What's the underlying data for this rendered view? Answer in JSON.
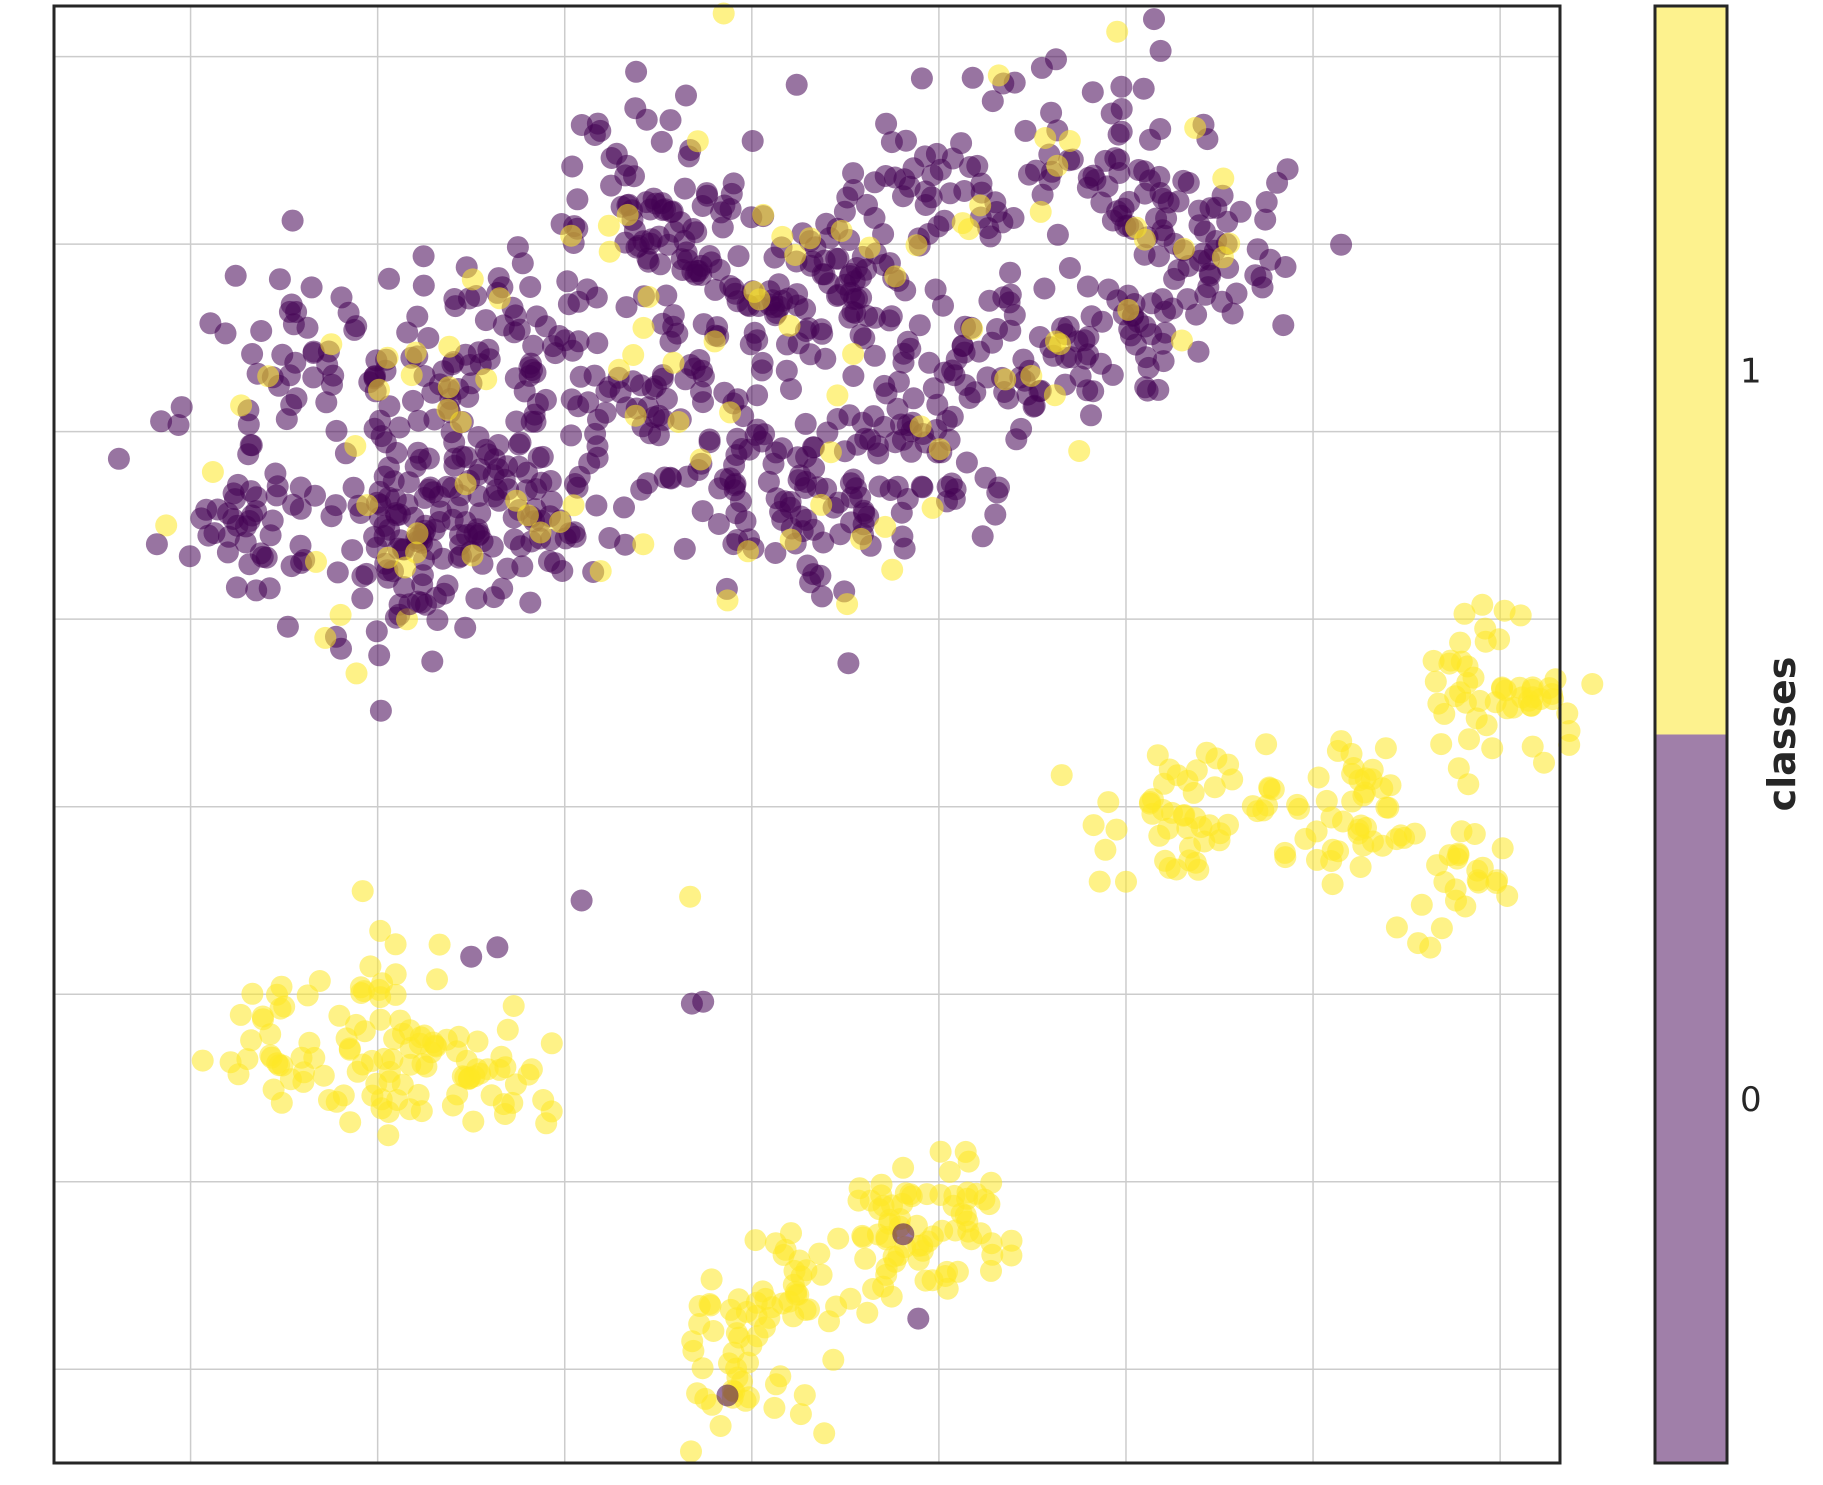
{
  "chart_data": {
    "type": "scatter",
    "title": "",
    "xlabel": "",
    "ylabel": "",
    "grid": true,
    "xlim": [
      -0.55,
      7.5
    ],
    "ylim": [
      -0.5,
      7.27
    ],
    "x_ticks": [
      0.18,
      1.18,
      2.18,
      3.18,
      4.18,
      5.18,
      6.18,
      7.18
    ],
    "y_ticks": [
      0.0,
      1.0,
      2.0,
      3.0,
      4.0,
      5.0,
      6.0,
      7.0
    ],
    "marker_alpha": 0.55,
    "colors": {
      "class0": "#440154",
      "class1": "#fde725",
      "class0_bar": "#a07fa9",
      "class1_bar": "#fdf28e"
    },
    "colorbar": {
      "label": "classes",
      "tick_labels": [
        "0",
        "1"
      ],
      "tick_values": [
        0.25,
        0.75
      ],
      "range": [
        0,
        1
      ]
    },
    "series": [
      {
        "class": 0,
        "cluster_centers": [
          [
            0.5,
            4.6
          ],
          [
            0.9,
            5.4
          ],
          [
            1.25,
            4.3
          ],
          [
            1.5,
            4.9
          ],
          [
            1.8,
            5.5
          ],
          [
            2.05,
            4.55
          ],
          [
            2.5,
            5.3
          ],
          [
            2.6,
            6.3
          ],
          [
            2.9,
            5.9
          ],
          [
            3.1,
            4.85
          ],
          [
            3.4,
            5.6
          ],
          [
            3.8,
            5.85
          ],
          [
            3.95,
            4.8
          ],
          [
            4.3,
            6.35
          ],
          [
            4.45,
            5.3
          ],
          [
            5.1,
            6.45
          ],
          [
            5.25,
            5.6
          ],
          [
            5.65,
            6.0
          ],
          [
            1.6,
            4.5
          ],
          [
            3.55,
            4.5
          ]
        ],
        "points": [
          [
            2.27,
            2.5
          ],
          [
            1.68,
            2.2
          ],
          [
            1.82,
            2.25
          ],
          [
            2.86,
            1.95
          ],
          [
            2.92,
            1.96
          ],
          [
            3.99,
            0.72
          ],
          [
            4.07,
            0.27
          ],
          [
            3.05,
            -0.14
          ],
          [
            0.0,
            4.4
          ],
          [
            0.7,
            3.96
          ],
          [
            2.26,
            4.76
          ],
          [
            3.42,
            6.85
          ],
          [
            5.33,
            7.2
          ],
          [
            1.35,
            4.08
          ],
          [
            2.76,
            5.56
          ]
        ]
      },
      {
        "class": 1,
        "cluster_centers": [
          [
            0.6,
            1.75
          ],
          [
            1.05,
            1.55
          ],
          [
            1.5,
            1.65
          ],
          [
            1.85,
            1.55
          ],
          [
            1.1,
            2.0
          ],
          [
            3.45,
            0.5
          ],
          [
            3.2,
            0.25
          ],
          [
            4.0,
            0.65
          ],
          [
            4.05,
            0.9
          ],
          [
            4.35,
            0.7
          ],
          [
            3.15,
            -0.05
          ],
          [
            5.7,
            3.0
          ],
          [
            6.45,
            3.15
          ],
          [
            6.4,
            2.85
          ],
          [
            6.95,
            2.55
          ],
          [
            7.3,
            3.6
          ],
          [
            7.15,
            3.7
          ],
          [
            5.35,
            2.9
          ]
        ],
        "points": [
          [
            2.85,
            2.52
          ],
          [
            5.18,
            2.6
          ],
          [
            5.07,
            2.77
          ],
          [
            7.1,
            3.95
          ],
          [
            6.85,
            3.55
          ],
          [
            7.29,
            4.02
          ],
          [
            7.01,
            3.12
          ],
          [
            2.6,
            4.4
          ],
          [
            2.47,
            5.33
          ],
          [
            3.05,
            4.1
          ],
          [
            0.45,
            5.14
          ],
          [
            0.9,
            3.9
          ],
          [
            4.88,
            6.55
          ],
          [
            5.55,
            6.62
          ],
          [
            3.03,
            7.23
          ],
          [
            1.1,
            2.55
          ],
          [
            0.05,
            4.5
          ],
          [
            1.65,
            4.72
          ],
          [
            5.7,
            6.35
          ],
          [
            4.5,
            6.9
          ]
        ]
      }
    ]
  }
}
